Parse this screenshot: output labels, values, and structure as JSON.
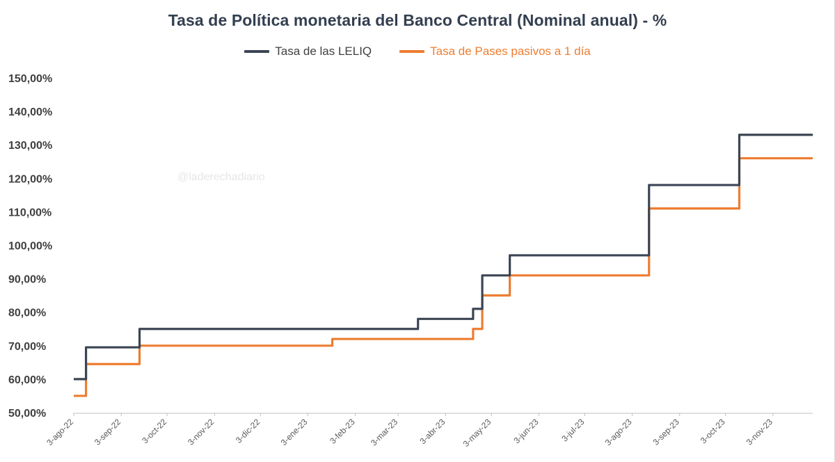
{
  "colors": {
    "leliq": "#3b4554",
    "pases": "#ed7d31",
    "axis": "#bfbfbf",
    "title": "#333f4f"
  },
  "watermark": "@laderechadiario",
  "chart_data": {
    "type": "line",
    "title": "Tasa de Política monetaria del Banco Central (Nominal anual) - %",
    "xlabel": "",
    "ylabel": "",
    "ylim": [
      50,
      150
    ],
    "y_ticks": [
      "150,00%",
      "140,00%",
      "130,00%",
      "120,00%",
      "110,00%",
      "100,00%",
      "90,00%",
      "80,00%",
      "70,00%",
      "60,00%",
      "50,00%"
    ],
    "y_tick_values": [
      150,
      140,
      130,
      120,
      110,
      100,
      90,
      80,
      70,
      60,
      50
    ],
    "x_range": [
      "2022-08-03",
      "2023-11-29"
    ],
    "x_ticks": [
      {
        "label": "3-ago-22",
        "date": "2022-08-03"
      },
      {
        "label": "3-sep-22",
        "date": "2022-09-03"
      },
      {
        "label": "3-oct-22",
        "date": "2022-10-03"
      },
      {
        "label": "3-nov-22",
        "date": "2022-11-03"
      },
      {
        "label": "3-dic-22",
        "date": "2022-12-03"
      },
      {
        "label": "3-ene-23",
        "date": "2023-01-03"
      },
      {
        "label": "3-feb-23",
        "date": "2023-02-03"
      },
      {
        "label": "3-mar-23",
        "date": "2023-03-03"
      },
      {
        "label": "3-abr-23",
        "date": "2023-04-03"
      },
      {
        "label": "3-may-23",
        "date": "2023-05-03"
      },
      {
        "label": "3-jun-23",
        "date": "2023-06-03"
      },
      {
        "label": "3-jul-23",
        "date": "2023-07-03"
      },
      {
        "label": "3-ago-23",
        "date": "2023-08-03"
      },
      {
        "label": "3-sep-23",
        "date": "2023-09-03"
      },
      {
        "label": "3-oct-23",
        "date": "2023-10-03"
      },
      {
        "label": "3-nov-23",
        "date": "2023-11-03"
      }
    ],
    "legend_position": "top-center",
    "grid": false,
    "series": [
      {
        "name": "Tasa de las LELIQ",
        "color": "#3b4554",
        "step": true,
        "points": [
          {
            "x": "2022-08-03",
            "y": 60
          },
          {
            "x": "2022-08-11",
            "y": 69.5
          },
          {
            "x": "2022-09-15",
            "y": 75
          },
          {
            "x": "2023-03-16",
            "y": 78
          },
          {
            "x": "2023-04-21",
            "y": 81
          },
          {
            "x": "2023-04-27",
            "y": 91
          },
          {
            "x": "2023-05-15",
            "y": 97
          },
          {
            "x": "2023-08-14",
            "y": 118
          },
          {
            "x": "2023-10-12",
            "y": 133
          },
          {
            "x": "2023-11-29",
            "y": 133
          }
        ]
      },
      {
        "name": "Tasa de Pases pasivos a 1 día",
        "color": "#ed7d31",
        "step": true,
        "points": [
          {
            "x": "2022-08-03",
            "y": 55
          },
          {
            "x": "2022-08-11",
            "y": 64.5
          },
          {
            "x": "2022-09-15",
            "y": 70
          },
          {
            "x": "2023-01-19",
            "y": 72
          },
          {
            "x": "2023-04-21",
            "y": 75
          },
          {
            "x": "2023-04-27",
            "y": 85
          },
          {
            "x": "2023-05-15",
            "y": 91
          },
          {
            "x": "2023-08-14",
            "y": 111
          },
          {
            "x": "2023-10-12",
            "y": 126
          },
          {
            "x": "2023-11-29",
            "y": 126
          }
        ]
      }
    ]
  }
}
